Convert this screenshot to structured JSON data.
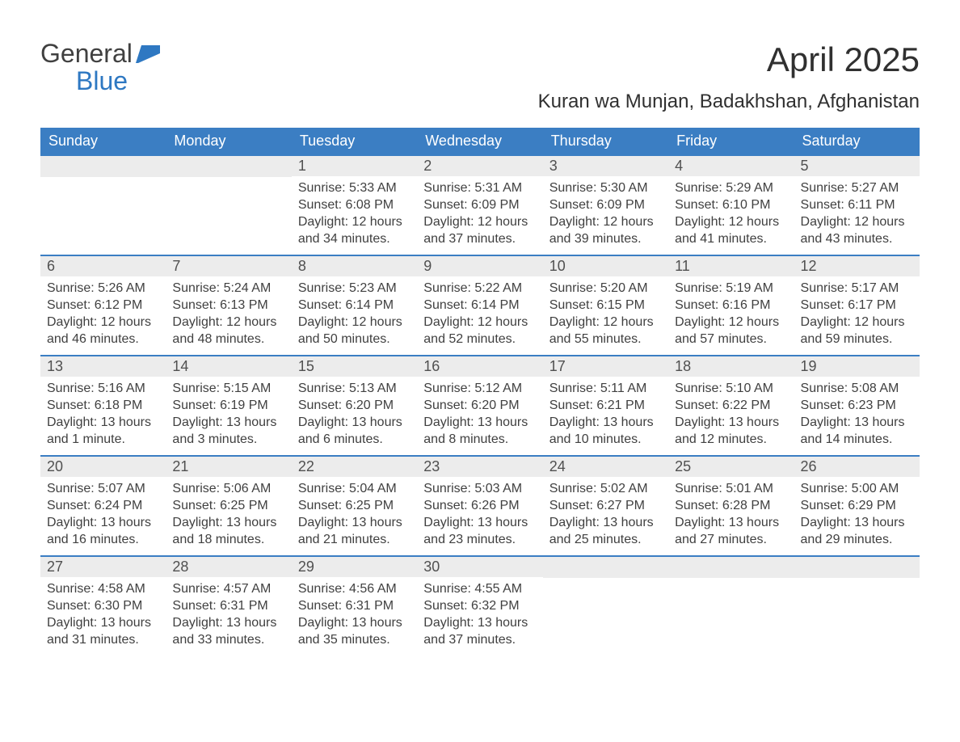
{
  "logo": {
    "word1": "General",
    "word2": "Blue"
  },
  "title": "April 2025",
  "location": "Kuran wa Munjan, Badakhshan, Afghanistan",
  "colors": {
    "header_bg": "#3b7ec3",
    "header_text": "#ffffff",
    "daynum_bg": "#ececec",
    "border": "#3b7ec3",
    "text": "#404040",
    "logo_blue": "#2e78c2"
  },
  "daysOfWeek": [
    "Sunday",
    "Monday",
    "Tuesday",
    "Wednesday",
    "Thursday",
    "Friday",
    "Saturday"
  ],
  "weeks": [
    [
      {
        "day": "",
        "sunrise": "",
        "sunset": "",
        "daylight": ""
      },
      {
        "day": "",
        "sunrise": "",
        "sunset": "",
        "daylight": ""
      },
      {
        "day": "1",
        "sunrise": "Sunrise: 5:33 AM",
        "sunset": "Sunset: 6:08 PM",
        "daylight": "Daylight: 12 hours and 34 minutes."
      },
      {
        "day": "2",
        "sunrise": "Sunrise: 5:31 AM",
        "sunset": "Sunset: 6:09 PM",
        "daylight": "Daylight: 12 hours and 37 minutes."
      },
      {
        "day": "3",
        "sunrise": "Sunrise: 5:30 AM",
        "sunset": "Sunset: 6:09 PM",
        "daylight": "Daylight: 12 hours and 39 minutes."
      },
      {
        "day": "4",
        "sunrise": "Sunrise: 5:29 AM",
        "sunset": "Sunset: 6:10 PM",
        "daylight": "Daylight: 12 hours and 41 minutes."
      },
      {
        "day": "5",
        "sunrise": "Sunrise: 5:27 AM",
        "sunset": "Sunset: 6:11 PM",
        "daylight": "Daylight: 12 hours and 43 minutes."
      }
    ],
    [
      {
        "day": "6",
        "sunrise": "Sunrise: 5:26 AM",
        "sunset": "Sunset: 6:12 PM",
        "daylight": "Daylight: 12 hours and 46 minutes."
      },
      {
        "day": "7",
        "sunrise": "Sunrise: 5:24 AM",
        "sunset": "Sunset: 6:13 PM",
        "daylight": "Daylight: 12 hours and 48 minutes."
      },
      {
        "day": "8",
        "sunrise": "Sunrise: 5:23 AM",
        "sunset": "Sunset: 6:14 PM",
        "daylight": "Daylight: 12 hours and 50 minutes."
      },
      {
        "day": "9",
        "sunrise": "Sunrise: 5:22 AM",
        "sunset": "Sunset: 6:14 PM",
        "daylight": "Daylight: 12 hours and 52 minutes."
      },
      {
        "day": "10",
        "sunrise": "Sunrise: 5:20 AM",
        "sunset": "Sunset: 6:15 PM",
        "daylight": "Daylight: 12 hours and 55 minutes."
      },
      {
        "day": "11",
        "sunrise": "Sunrise: 5:19 AM",
        "sunset": "Sunset: 6:16 PM",
        "daylight": "Daylight: 12 hours and 57 minutes."
      },
      {
        "day": "12",
        "sunrise": "Sunrise: 5:17 AM",
        "sunset": "Sunset: 6:17 PM",
        "daylight": "Daylight: 12 hours and 59 minutes."
      }
    ],
    [
      {
        "day": "13",
        "sunrise": "Sunrise: 5:16 AM",
        "sunset": "Sunset: 6:18 PM",
        "daylight": "Daylight: 13 hours and 1 minute."
      },
      {
        "day": "14",
        "sunrise": "Sunrise: 5:15 AM",
        "sunset": "Sunset: 6:19 PM",
        "daylight": "Daylight: 13 hours and 3 minutes."
      },
      {
        "day": "15",
        "sunrise": "Sunrise: 5:13 AM",
        "sunset": "Sunset: 6:20 PM",
        "daylight": "Daylight: 13 hours and 6 minutes."
      },
      {
        "day": "16",
        "sunrise": "Sunrise: 5:12 AM",
        "sunset": "Sunset: 6:20 PM",
        "daylight": "Daylight: 13 hours and 8 minutes."
      },
      {
        "day": "17",
        "sunrise": "Sunrise: 5:11 AM",
        "sunset": "Sunset: 6:21 PM",
        "daylight": "Daylight: 13 hours and 10 minutes."
      },
      {
        "day": "18",
        "sunrise": "Sunrise: 5:10 AM",
        "sunset": "Sunset: 6:22 PM",
        "daylight": "Daylight: 13 hours and 12 minutes."
      },
      {
        "day": "19",
        "sunrise": "Sunrise: 5:08 AM",
        "sunset": "Sunset: 6:23 PM",
        "daylight": "Daylight: 13 hours and 14 minutes."
      }
    ],
    [
      {
        "day": "20",
        "sunrise": "Sunrise: 5:07 AM",
        "sunset": "Sunset: 6:24 PM",
        "daylight": "Daylight: 13 hours and 16 minutes."
      },
      {
        "day": "21",
        "sunrise": "Sunrise: 5:06 AM",
        "sunset": "Sunset: 6:25 PM",
        "daylight": "Daylight: 13 hours and 18 minutes."
      },
      {
        "day": "22",
        "sunrise": "Sunrise: 5:04 AM",
        "sunset": "Sunset: 6:25 PM",
        "daylight": "Daylight: 13 hours and 21 minutes."
      },
      {
        "day": "23",
        "sunrise": "Sunrise: 5:03 AM",
        "sunset": "Sunset: 6:26 PM",
        "daylight": "Daylight: 13 hours and 23 minutes."
      },
      {
        "day": "24",
        "sunrise": "Sunrise: 5:02 AM",
        "sunset": "Sunset: 6:27 PM",
        "daylight": "Daylight: 13 hours and 25 minutes."
      },
      {
        "day": "25",
        "sunrise": "Sunrise: 5:01 AM",
        "sunset": "Sunset: 6:28 PM",
        "daylight": "Daylight: 13 hours and 27 minutes."
      },
      {
        "day": "26",
        "sunrise": "Sunrise: 5:00 AM",
        "sunset": "Sunset: 6:29 PM",
        "daylight": "Daylight: 13 hours and 29 minutes."
      }
    ],
    [
      {
        "day": "27",
        "sunrise": "Sunrise: 4:58 AM",
        "sunset": "Sunset: 6:30 PM",
        "daylight": "Daylight: 13 hours and 31 minutes."
      },
      {
        "day": "28",
        "sunrise": "Sunrise: 4:57 AM",
        "sunset": "Sunset: 6:31 PM",
        "daylight": "Daylight: 13 hours and 33 minutes."
      },
      {
        "day": "29",
        "sunrise": "Sunrise: 4:56 AM",
        "sunset": "Sunset: 6:31 PM",
        "daylight": "Daylight: 13 hours and 35 minutes."
      },
      {
        "day": "30",
        "sunrise": "Sunrise: 4:55 AM",
        "sunset": "Sunset: 6:32 PM",
        "daylight": "Daylight: 13 hours and 37 minutes."
      },
      {
        "day": "",
        "sunrise": "",
        "sunset": "",
        "daylight": ""
      },
      {
        "day": "",
        "sunrise": "",
        "sunset": "",
        "daylight": ""
      },
      {
        "day": "",
        "sunrise": "",
        "sunset": "",
        "daylight": ""
      }
    ]
  ]
}
